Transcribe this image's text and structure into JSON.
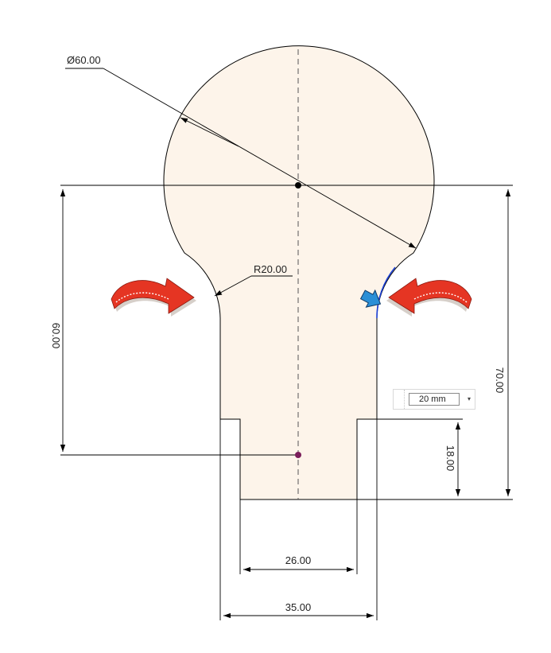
{
  "dimensions": {
    "circle_diameter": "Ø60.00",
    "fillet_radius": "R20.00",
    "left_height": "60.00",
    "total_height": "70.00",
    "slot_depth": "18.00",
    "inner_width": "26.00",
    "outer_width": "35.00"
  },
  "dimension_input": {
    "value": "20 mm",
    "dropdown_glyph": "▾"
  },
  "colors": {
    "profile_fill": "#fdf4ea",
    "line": "#000000",
    "selected_edge": "#1a3fd6",
    "arrow_red": "#e53523",
    "arrow_blue": "#2b8fd6",
    "center_point": "#7a1d5a"
  },
  "icons": {
    "left_arrow": "curved-arrow-red-icon",
    "right_arrow": "curved-arrow-red-icon",
    "pointer": "blue-pointer-icon"
  }
}
